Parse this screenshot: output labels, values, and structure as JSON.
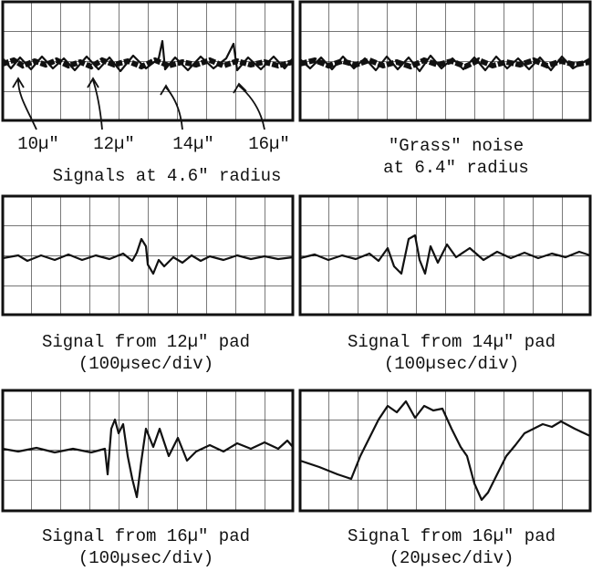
{
  "panels": [
    {
      "markers": [
        "10µ\"",
        "12µ\"",
        "14µ\"",
        "16µ\""
      ],
      "caption": [
        "Signals at 4.6\" radius"
      ]
    },
    {
      "caption": [
        "\"Grass\" noise",
        "at 6.4\" radius"
      ]
    },
    {
      "caption": [
        "Signal from 12µ\" pad",
        "(100µsec/div)"
      ]
    },
    {
      "caption": [
        "Signal from 14µ\" pad",
        "(100µsec/div)"
      ]
    },
    {
      "caption": [
        "Signal from 16µ\" pad",
        "(100µsec/div)"
      ]
    },
    {
      "caption": [
        "Signal from 16µ\" pad",
        "(20µsec/div)"
      ]
    }
  ]
}
